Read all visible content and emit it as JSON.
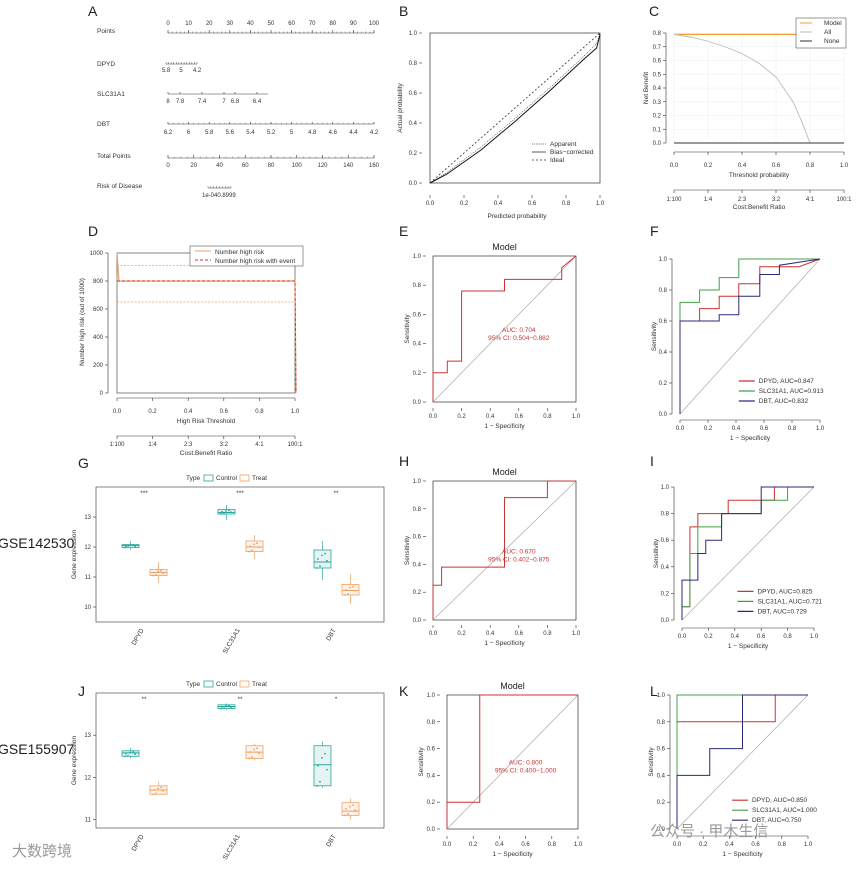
{
  "panels": {
    "A": {
      "letter": "A",
      "rows": [
        "Points",
        "DPYD",
        "SLC31A1",
        "DBT",
        "Total Points",
        "Risk of Disease"
      ],
      "points_ticks": [
        "0",
        "10",
        "20",
        "30",
        "40",
        "50",
        "60",
        "70",
        "80",
        "90",
        "100"
      ],
      "dpyd_ticks": [
        "5.8",
        "5",
        "4.2"
      ],
      "slc_ticks": [
        "8",
        "7.8",
        "7.4",
        "7",
        "6.8",
        "6.4"
      ],
      "dbt_ticks": [
        "6.2",
        "6",
        "5.8",
        "5.6",
        "5.4",
        "5.2",
        "5",
        "4.8",
        "4.6",
        "4.4",
        "4.2"
      ],
      "total_ticks": [
        "0",
        "20",
        "40",
        "60",
        "80",
        "100",
        "120",
        "140",
        "160"
      ],
      "risk_ticks": [
        "1e-040.8999"
      ]
    },
    "B": {
      "letter": "B",
      "ylabel": "Actual probability",
      "xlabel": "Predicted probability",
      "xticks": [
        "0.0",
        "0.2",
        "0.4",
        "0.6",
        "0.8",
        "1.0"
      ],
      "yticks": [
        "0.0",
        "0.2",
        "0.4",
        "0.6",
        "0.8",
        "1.0"
      ],
      "legend": [
        "Apparent",
        "Bias−corrected",
        "Ideal"
      ]
    },
    "C": {
      "letter": "C",
      "ylabel": "Net Benefit",
      "xlabel": "Threshold probability",
      "xlabel2": "Cost:Benefit Ratio",
      "xticks": [
        "0.0",
        "0.2",
        "0.4",
        "0.6",
        "0.8",
        "1.0"
      ],
      "yticks": [
        "0.0",
        "0.1",
        "0.2",
        "0.3",
        "0.4",
        "0.5",
        "0.6",
        "0.7",
        "0.8"
      ],
      "ratio_ticks": [
        "1:100",
        "1:4",
        "2:3",
        "3:2",
        "4:1",
        "100:1"
      ],
      "legend": [
        "Model",
        "All",
        "None"
      ],
      "colors": {
        "model": "#f0a030",
        "all": "#bbbbbb",
        "none": "#333333"
      }
    },
    "D": {
      "letter": "D",
      "ylabel": "Number high risk (out of 1000)",
      "xlabel": "High Risk Threshold",
      "xlabel2": "Cost:Benefit Ratio",
      "xticks": [
        "0.0",
        "0.2",
        "0.4",
        "0.6",
        "0.8",
        "1.0"
      ],
      "yticks": [
        "0",
        "200",
        "400",
        "600",
        "800",
        "1000"
      ],
      "ratio_ticks": [
        "1:100",
        "1:4",
        "2:3",
        "3:2",
        "4:1",
        "100:1"
      ],
      "legend": [
        "Number high risk",
        "Number high risk with event"
      ]
    },
    "E": {
      "letter": "E",
      "title": "Model",
      "auc": "AUC: 0.704",
      "ci": "95% CI: 0.504−0.882",
      "xlabel": "1 − Specificity",
      "ylabel": "Sensitivity",
      "xticks": [
        "0.0",
        "0.2",
        "0.4",
        "0.6",
        "0.8",
        "1.0"
      ],
      "yticks": [
        "0.0",
        "0.2",
        "0.4",
        "0.6",
        "0.8",
        "1.0"
      ]
    },
    "F": {
      "letter": "F",
      "xlabel": "1 − Specificity",
      "ylabel": "Sensitivity",
      "xticks": [
        "0.0",
        "0.2",
        "0.4",
        "0.6",
        "0.8",
        "1.0"
      ],
      "yticks": [
        "0.0",
        "0.2",
        "0.4",
        "0.6",
        "0.8",
        "1.0"
      ],
      "legend": [
        "DPYD, AUC=0.847",
        "SLC31A1, AUC=0.913",
        "DBT, AUC=0.832"
      ]
    },
    "G": {
      "letter": "G",
      "dataset": "GSE142530",
      "ylabel": "Gene expression",
      "type_label": "Type",
      "control": "Control",
      "treat": "Treat",
      "genes": [
        "DPYD",
        "SLC31A1",
        "DBT"
      ],
      "sig": [
        "***",
        "***",
        "**"
      ],
      "yticks": [
        "10",
        "11",
        "12",
        "13"
      ]
    },
    "H": {
      "letter": "H",
      "title": "Model",
      "auc": "AUC: 0.670",
      "ci": "95% CI: 0.402−0.875",
      "xlabel": "1 − Specificity",
      "ylabel": "Sensitivity",
      "xticks": [
        "0.0",
        "0.2",
        "0.4",
        "0.6",
        "0.8",
        "1.0"
      ],
      "yticks": [
        "0.0",
        "0.2",
        "0.4",
        "0.6",
        "0.8",
        "1.0"
      ]
    },
    "I": {
      "letter": "I",
      "xlabel": "1 − Specificity",
      "ylabel": "Sensitivity",
      "xticks": [
        "0.0",
        "0.2",
        "0.4",
        "0.6",
        "0.8",
        "1.0"
      ],
      "yticks": [
        "0.0",
        "0.2",
        "0.4",
        "0.6",
        "0.8",
        "1.0"
      ],
      "legend": [
        "DPYD, AUC=0.825",
        "SLC31A1, AUC=0.721",
        "DBT, AUC=0.729"
      ]
    },
    "J": {
      "letter": "J",
      "dataset": "GSE155907",
      "ylabel": "Gene expression",
      "type_label": "Type",
      "control": "Control",
      "treat": "Treat",
      "genes": [
        "DPYD",
        "SLC31A1",
        "DBT"
      ],
      "sig": [
        "**",
        "**",
        "*"
      ],
      "yticks": [
        "11",
        "12",
        "13"
      ]
    },
    "K": {
      "letter": "K",
      "title": "Model",
      "auc": "AUC: 0.800",
      "ci": "95% CI: 0.400−1.000",
      "xlabel": "1 − Specificity",
      "ylabel": "Sensitivity",
      "xticks": [
        "0.0",
        "0.2",
        "0.4",
        "0.6",
        "0.8",
        "1.0"
      ],
      "yticks": [
        "0.0",
        "0.2",
        "0.4",
        "0.6",
        "0.8",
        "1.0"
      ]
    },
    "L": {
      "letter": "L",
      "xlabel": "1 − Specificity",
      "ylabel": "Sensitivity",
      "xticks": [
        "0.0",
        "0.2",
        "0.4",
        "0.6",
        "0.8",
        "1.0"
      ],
      "yticks": [
        "0.0",
        "0.2",
        "0.4",
        "0.6",
        "0.8",
        "1.0"
      ],
      "legend": [
        "DPYD, AUC=0.850",
        "SLC31A1, AUC=1.000",
        "DBT, AUC=0.750"
      ]
    }
  },
  "watermark_left": "大数跨境",
  "watermark_right": "公众号 · 甲木生信",
  "colors": {
    "red": "#cc3333",
    "green": "#44a044",
    "navy": "#2a2a7a",
    "teal": "#2aa79b",
    "orange": "#f0a060",
    "gray": "#aaaaaa"
  },
  "chart_data": [
    {
      "panel": "C",
      "type": "line",
      "xlabel": "Threshold probability",
      "ylabel": "Net Benefit",
      "xlim": [
        0,
        1
      ],
      "ylim": [
        0,
        0.8
      ],
      "series": [
        {
          "name": "Model",
          "x": [
            0,
            0.8
          ],
          "y": [
            0.79,
            0.79
          ]
        },
        {
          "name": "All",
          "x": [
            0,
            0.1,
            0.2,
            0.3,
            0.4,
            0.5,
            0.6,
            0.7,
            0.75,
            0.8
          ],
          "y": [
            0.79,
            0.77,
            0.74,
            0.7,
            0.65,
            0.58,
            0.48,
            0.3,
            0.16,
            0.0
          ]
        },
        {
          "name": "None",
          "x": [
            0,
            1
          ],
          "y": [
            0,
            0
          ]
        }
      ]
    },
    {
      "panel": "D",
      "type": "line",
      "xlabel": "High Risk Threshold",
      "ylabel": "Number high risk (out of 1000)",
      "xlim": [
        0,
        1
      ],
      "ylim": [
        0,
        1000
      ],
      "series": [
        {
          "name": "Number high risk",
          "x": [
            0,
            1
          ],
          "y": [
            800,
            800
          ]
        },
        {
          "name": "Number high risk with event",
          "x": [
            0,
            1
          ],
          "y": [
            800,
            800
          ]
        }
      ]
    },
    {
      "panel": "E",
      "type": "line",
      "title": "Model",
      "xlabel": "1 − Specificity",
      "ylabel": "Sensitivity",
      "series": [
        {
          "x": [
            0,
            0,
            0.1,
            0.1,
            0.2,
            0.2,
            0.5,
            0.5,
            0.9,
            0.9,
            1.0
          ],
          "y": [
            0,
            0.2,
            0.2,
            0.28,
            0.28,
            0.76,
            0.76,
            0.84,
            0.84,
            0.92,
            1.0
          ]
        }
      ]
    },
    {
      "panel": "F",
      "type": "line",
      "xlabel": "1 − Specificity",
      "ylabel": "Sensitivity",
      "series": [
        {
          "name": "DPYD, AUC=0.847",
          "x": [
            0,
            0,
            0.14,
            0.14,
            0.28,
            0.28,
            0.42,
            0.42,
            0.57,
            0.57,
            0.85,
            1.0
          ],
          "y": [
            0,
            0.6,
            0.6,
            0.68,
            0.68,
            0.76,
            0.76,
            0.84,
            0.84,
            0.95,
            0.95,
            1.0
          ]
        },
        {
          "name": "SLC31A1, AUC=0.913",
          "x": [
            0,
            0,
            0.14,
            0.14,
            0.28,
            0.28,
            0.42,
            0.42,
            0.57,
            0.57,
            1.0
          ],
          "y": [
            0,
            0.72,
            0.72,
            0.8,
            0.8,
            0.88,
            0.88,
            1.0,
            1.0,
            1.0,
            1.0
          ]
        },
        {
          "name": "DBT, AUC=0.832",
          "x": [
            0,
            0,
            0.28,
            0.28,
            0.42,
            0.42,
            0.57,
            0.57,
            0.71,
            0.71,
            1.0
          ],
          "y": [
            0,
            0.6,
            0.6,
            0.64,
            0.64,
            0.76,
            0.76,
            0.9,
            0.9,
            0.96,
            1.0
          ]
        }
      ]
    },
    {
      "panel": "H",
      "type": "line",
      "title": "Model",
      "xlabel": "1 − Specificity",
      "ylabel": "Sensitivity",
      "series": [
        {
          "x": [
            0,
            0,
            0.06,
            0.06,
            0.5,
            0.5,
            0.8,
            0.8,
            1.0
          ],
          "y": [
            0,
            0.25,
            0.25,
            0.38,
            0.38,
            0.88,
            0.88,
            1.0,
            1.0
          ]
        }
      ]
    },
    {
      "panel": "I",
      "type": "line",
      "xlabel": "1 − Specificity",
      "ylabel": "Sensitivity",
      "series": [
        {
          "name": "DPYD, AUC=0.825",
          "x": [
            0,
            0,
            0.06,
            0.06,
            0.12,
            0.12,
            0.18,
            0.18,
            0.35,
            0.35,
            0.7,
            0.7,
            1.0
          ],
          "y": [
            0,
            0.1,
            0.1,
            0.7,
            0.7,
            0.8,
            0.8,
            0.8,
            0.8,
            0.9,
            0.9,
            1.0,
            1.0
          ]
        },
        {
          "name": "SLC31A1, AUC=0.721",
          "x": [
            0,
            0,
            0.06,
            0.06,
            0.12,
            0.12,
            0.3,
            0.3,
            0.6,
            0.6,
            0.8,
            0.8,
            1.0
          ],
          "y": [
            0,
            0.1,
            0.1,
            0.5,
            0.5,
            0.7,
            0.7,
            0.8,
            0.8,
            0.9,
            0.9,
            1.0,
            1.0
          ]
        },
        {
          "name": "DBT, AUC=0.729",
          "x": [
            0,
            0,
            0.12,
            0.12,
            0.18,
            0.18,
            0.3,
            0.3,
            0.6,
            0.6,
            0.8,
            1.0
          ],
          "y": [
            0,
            0.3,
            0.3,
            0.5,
            0.5,
            0.6,
            0.6,
            0.8,
            0.8,
            1.0,
            1.0,
            1.0
          ]
        }
      ]
    },
    {
      "panel": "K",
      "type": "line",
      "title": "Model",
      "xlabel": "1 − Specificity",
      "ylabel": "Sensitivity",
      "series": [
        {
          "x": [
            0,
            0,
            0.25,
            0.25,
            1.0
          ],
          "y": [
            0,
            0.2,
            0.2,
            1.0,
            1.0
          ]
        }
      ]
    },
    {
      "panel": "L",
      "type": "line",
      "xlabel": "1 − Specificity",
      "ylabel": "Sensitivity",
      "series": [
        {
          "name": "DPYD, AUC=0.850",
          "x": [
            0,
            0,
            0.75,
            0.75,
            1.0
          ],
          "y": [
            0,
            0.8,
            0.8,
            1.0,
            1.0
          ]
        },
        {
          "name": "SLC31A1, AUC=1.000",
          "x": [
            0,
            0,
            1.0
          ],
          "y": [
            0,
            1.0,
            1.0
          ]
        },
        {
          "name": "DBT, AUC=0.750",
          "x": [
            0,
            0,
            0.25,
            0.25,
            0.5,
            0.5,
            1.0
          ],
          "y": [
            0,
            0.4,
            0.4,
            0.6,
            0.6,
            1.0,
            1.0
          ]
        }
      ]
    },
    {
      "panel": "G",
      "type": "box",
      "ylabel": "Gene expression",
      "ylim": [
        9.5,
        14
      ],
      "categories": [
        "DPYD",
        "SLC31A1",
        "DBT"
      ],
      "series": [
        {
          "name": "Control",
          "q": [
            [
              11.9,
              11.98,
              12.05,
              12.08,
              12.2
            ],
            [
              12.9,
              13.1,
              13.15,
              13.25,
              13.4
            ],
            [
              10.9,
              11.3,
              11.5,
              11.9,
              12.2
            ]
          ]
        },
        {
          "name": "Treat",
          "q": [
            [
              10.8,
              11.05,
              11.15,
              11.25,
              11.5
            ],
            [
              11.6,
              11.85,
              12.0,
              12.2,
              12.4
            ],
            [
              10.1,
              10.4,
              10.55,
              10.75,
              11.1
            ]
          ]
        }
      ]
    },
    {
      "panel": "J",
      "type": "box",
      "ylabel": "Gene expression",
      "ylim": [
        10.8,
        14
      ],
      "categories": [
        "DPYD",
        "SLC31A1",
        "DBT"
      ],
      "series": [
        {
          "name": "Control",
          "q": [
            [
              12.45,
              12.5,
              12.58,
              12.63,
              12.7
            ],
            [
              13.6,
              13.63,
              13.68,
              13.72,
              13.75
            ],
            [
              11.75,
              11.8,
              12.3,
              12.75,
              12.85
            ]
          ]
        },
        {
          "name": "Treat",
          "q": [
            [
              11.6,
              11.6,
              11.7,
              11.8,
              11.9
            ],
            [
              12.4,
              12.45,
              12.6,
              12.75,
              12.8
            ],
            [
              11.0,
              11.1,
              11.2,
              11.4,
              11.5
            ]
          ]
        }
      ]
    }
  ]
}
